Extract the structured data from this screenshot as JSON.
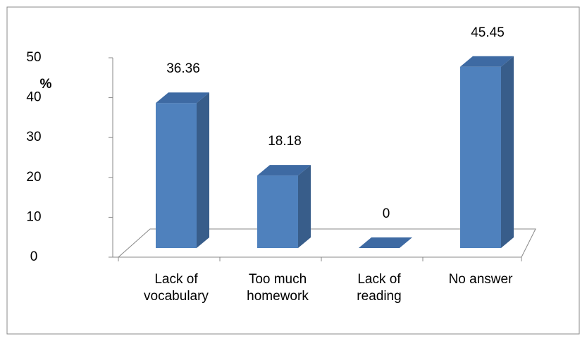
{
  "chart_data": {
    "type": "bar3d",
    "y_label": "%",
    "categories": [
      "Lack of vocabulary",
      "Too much homework",
      "Lack of reading",
      "No answer"
    ],
    "values": [
      36.36,
      18.18,
      0,
      45.45
    ],
    "color": "#4f81bd",
    "ylim": [
      0,
      50
    ],
    "yticks": [
      0,
      10,
      20,
      30,
      40,
      50
    ],
    "grid": false
  }
}
